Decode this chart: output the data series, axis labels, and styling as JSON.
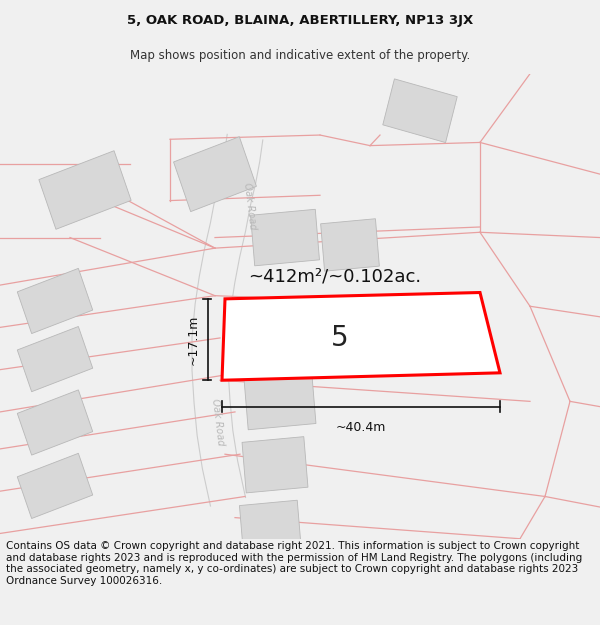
{
  "title_line1": "5, OAK ROAD, BLAINA, ABERTILLERY, NP13 3JX",
  "title_line2": "Map shows position and indicative extent of the property.",
  "footer_text": "Contains OS data © Crown copyright and database right 2021. This information is subject to Crown copyright and database rights 2023 and is reproduced with the permission of HM Land Registry. The polygons (including the associated geometry, namely x, y co-ordinates) are subject to Crown copyright and database rights 2023 Ordnance Survey 100026316.",
  "area_label": "~412m²/~0.102ac.",
  "width_label": "~40.4m",
  "height_label": "~17.1m",
  "house_number": "5",
  "map_bg": "#ffffff",
  "building_color": "#d8d8d8",
  "building_edge": "#b8b8b8",
  "boundary_color": "#e8a0a0",
  "road_fill": "#f0f0f0",
  "road_edge": "#cccccc",
  "road_text_color": "#b0b0b0",
  "highlight_color": "#ff0000",
  "dim_color": "#111111",
  "title_fontsize": 9.5,
  "subtitle_fontsize": 8.5,
  "footer_fontsize": 7.5,
  "area_fontsize": 13,
  "dim_fontsize": 9,
  "number_fontsize": 20,
  "footer_bg": "#f0f0f0"
}
